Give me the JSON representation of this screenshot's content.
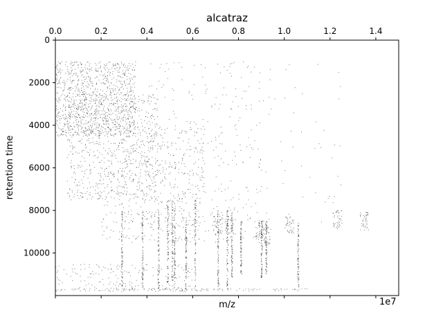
{
  "chart_data": {
    "type": "scatter",
    "title": "alcatraz",
    "xlabel": "m/z",
    "ylabel": "retention time",
    "x_scale_label": "1e7",
    "xlim": [
      0,
      1.5
    ],
    "ylim": [
      12000,
      0
    ],
    "x_ticks": [
      {
        "value": 0.0,
        "label": "0.0"
      },
      {
        "value": 0.2,
        "label": "0.2"
      },
      {
        "value": 0.4,
        "label": "0.4"
      },
      {
        "value": 0.6,
        "label": "0.6"
      },
      {
        "value": 0.8,
        "label": "0.8"
      },
      {
        "value": 1.0,
        "label": "1.0"
      },
      {
        "value": 1.2,
        "label": "1.2"
      },
      {
        "value": 1.4,
        "label": "1.4"
      }
    ],
    "y_ticks": [
      {
        "value": 0,
        "label": "0"
      },
      {
        "value": 2000,
        "label": "2000"
      },
      {
        "value": 4000,
        "label": "4000"
      },
      {
        "value": 6000,
        "label": "6000"
      },
      {
        "value": 8000,
        "label": "8000"
      },
      {
        "value": 10000,
        "label": "10000"
      }
    ],
    "x_axis_position": "top",
    "grid": false,
    "marker_color": "#000000",
    "regions": [
      {
        "x": [
          0.0,
          0.35
        ],
        "y": [
          1000,
          4500
        ],
        "density": 0.9
      },
      {
        "x": [
          0.05,
          0.45
        ],
        "y": [
          2500,
          7500
        ],
        "density": 0.6
      },
      {
        "x": [
          0.2,
          0.65
        ],
        "y": [
          4000,
          9500
        ],
        "density": 0.45
      },
      {
        "x": [
          0.4,
          0.9
        ],
        "y": [
          1000,
          9500
        ],
        "density": 0.25
      },
      {
        "x": [
          0.7,
          1.25
        ],
        "y": [
          1000,
          9000
        ],
        "density": 0.08
      },
      {
        "x": [
          0.0,
          0.6
        ],
        "y": [
          10500,
          11800
        ],
        "density": 0.15
      }
    ],
    "vertical_streaks": [
      {
        "x": 0.29,
        "y": [
          8000,
          11700
        ]
      },
      {
        "x": 0.38,
        "y": [
          8000,
          11700
        ]
      },
      {
        "x": 0.45,
        "y": [
          8000,
          11700
        ]
      },
      {
        "x": 0.49,
        "y": [
          7500,
          11700
        ]
      },
      {
        "x": 0.51,
        "y": [
          7500,
          11700
        ]
      },
      {
        "x": 0.52,
        "y": [
          7500,
          11700
        ]
      },
      {
        "x": 0.57,
        "y": [
          8200,
          11700
        ]
      },
      {
        "x": 0.61,
        "y": [
          7500,
          11700
        ]
      },
      {
        "x": 0.71,
        "y": [
          8000,
          11700
        ]
      },
      {
        "x": 0.75,
        "y": [
          8000,
          11700
        ]
      },
      {
        "x": 0.77,
        "y": [
          8000,
          11200
        ]
      },
      {
        "x": 0.81,
        "y": [
          8500,
          11000
        ]
      },
      {
        "x": 0.9,
        "y": [
          8500,
          11200
        ]
      },
      {
        "x": 0.92,
        "y": [
          8500,
          11000
        ]
      },
      {
        "x": 1.06,
        "y": [
          8500,
          11700
        ]
      }
    ],
    "clusters": [
      {
        "x": 0.71,
        "y": 8700
      },
      {
        "x": 0.76,
        "y": 8700
      },
      {
        "x": 0.89,
        "y": 8900
      },
      {
        "x": 0.92,
        "y": 9200
      },
      {
        "x": 1.23,
        "y": 8400
      },
      {
        "x": 1.35,
        "y": 8500
      },
      {
        "x": 1.02,
        "y": 8600
      }
    ]
  }
}
